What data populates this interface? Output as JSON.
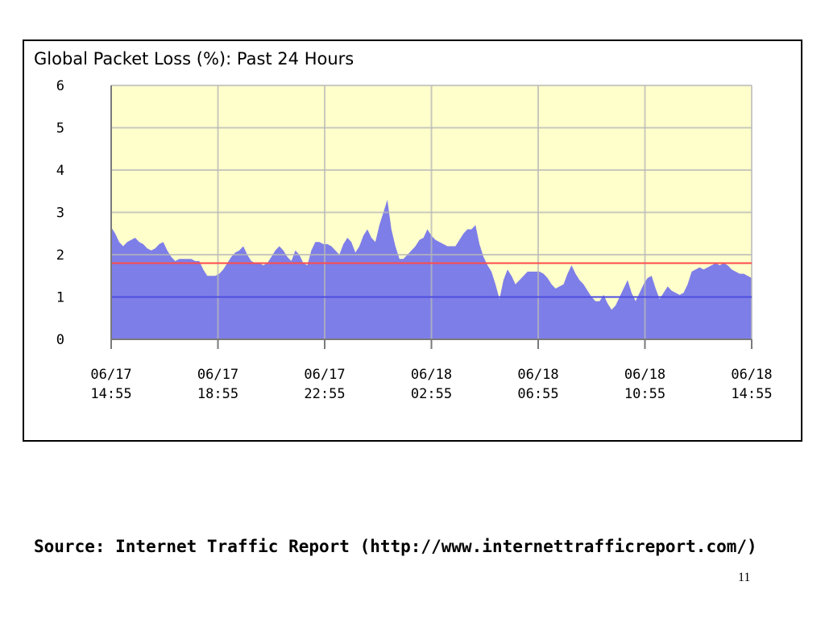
{
  "chart_data": {
    "type": "area",
    "title": "Global Packet Loss (%): Past 24 Hours",
    "ylim": [
      0,
      6
    ],
    "y_ticks": [
      "0",
      "1",
      "2",
      "3",
      "4",
      "5",
      "6"
    ],
    "x_ticks": [
      {
        "date": "06/17",
        "time": "14:55"
      },
      {
        "date": "06/17",
        "time": "18:55"
      },
      {
        "date": "06/17",
        "time": "22:55"
      },
      {
        "date": "06/18",
        "time": "02:55"
      },
      {
        "date": "06/18",
        "time": "06:55"
      },
      {
        "date": "06/18",
        "time": "10:55"
      },
      {
        "date": "06/18",
        "time": "14:55"
      }
    ],
    "x_range_hours": [
      0,
      24
    ],
    "grid": true,
    "series": [
      {
        "values": [
          [
            0.0,
            2.65
          ],
          [
            0.15,
            2.5
          ],
          [
            0.3,
            2.3
          ],
          [
            0.45,
            2.2
          ],
          [
            0.6,
            2.3
          ],
          [
            0.75,
            2.35
          ],
          [
            0.9,
            2.4
          ],
          [
            1.05,
            2.3
          ],
          [
            1.2,
            2.25
          ],
          [
            1.35,
            2.15
          ],
          [
            1.5,
            2.1
          ],
          [
            1.65,
            2.15
          ],
          [
            1.8,
            2.25
          ],
          [
            1.95,
            2.3
          ],
          [
            2.1,
            2.1
          ],
          [
            2.25,
            1.95
          ],
          [
            2.4,
            1.85
          ],
          [
            2.55,
            1.9
          ],
          [
            2.7,
            1.9
          ],
          [
            2.85,
            1.9
          ],
          [
            3.0,
            1.9
          ],
          [
            3.15,
            1.85
          ],
          [
            3.3,
            1.85
          ],
          [
            3.45,
            1.65
          ],
          [
            3.6,
            1.5
          ],
          [
            3.75,
            1.5
          ],
          [
            3.9,
            1.5
          ],
          [
            4.05,
            1.55
          ],
          [
            4.2,
            1.65
          ],
          [
            4.35,
            1.8
          ],
          [
            4.5,
            1.95
          ],
          [
            4.65,
            2.05
          ],
          [
            4.8,
            2.1
          ],
          [
            4.95,
            2.2
          ],
          [
            5.1,
            2.0
          ],
          [
            5.25,
            1.85
          ],
          [
            5.4,
            1.8
          ],
          [
            5.55,
            1.8
          ],
          [
            5.7,
            1.75
          ],
          [
            5.85,
            1.8
          ],
          [
            6.0,
            1.95
          ],
          [
            6.15,
            2.1
          ],
          [
            6.3,
            2.2
          ],
          [
            6.45,
            2.1
          ],
          [
            6.6,
            1.95
          ],
          [
            6.75,
            1.85
          ],
          [
            6.9,
            2.1
          ],
          [
            7.05,
            2.0
          ],
          [
            7.2,
            1.8
          ],
          [
            7.35,
            1.75
          ],
          [
            7.5,
            2.1
          ],
          [
            7.65,
            2.3
          ],
          [
            7.8,
            2.3
          ],
          [
            7.95,
            2.25
          ],
          [
            8.1,
            2.25
          ],
          [
            8.25,
            2.2
          ],
          [
            8.4,
            2.1
          ],
          [
            8.55,
            2.0
          ],
          [
            8.7,
            2.25
          ],
          [
            8.85,
            2.4
          ],
          [
            9.0,
            2.3
          ],
          [
            9.15,
            2.05
          ],
          [
            9.3,
            2.2
          ],
          [
            9.45,
            2.45
          ],
          [
            9.6,
            2.6
          ],
          [
            9.75,
            2.4
          ],
          [
            9.9,
            2.3
          ],
          [
            10.05,
            2.7
          ],
          [
            10.2,
            3.0
          ],
          [
            10.35,
            3.3
          ],
          [
            10.5,
            2.6
          ],
          [
            10.65,
            2.2
          ],
          [
            10.8,
            1.9
          ],
          [
            10.95,
            1.9
          ],
          [
            11.1,
            2.0
          ],
          [
            11.25,
            2.1
          ],
          [
            11.4,
            2.2
          ],
          [
            11.55,
            2.35
          ],
          [
            11.7,
            2.4
          ],
          [
            11.85,
            2.6
          ],
          [
            12.0,
            2.45
          ],
          [
            12.15,
            2.35
          ],
          [
            12.3,
            2.3
          ],
          [
            12.45,
            2.25
          ],
          [
            12.6,
            2.2
          ],
          [
            12.75,
            2.2
          ],
          [
            12.9,
            2.2
          ],
          [
            13.05,
            2.35
          ],
          [
            13.2,
            2.5
          ],
          [
            13.35,
            2.6
          ],
          [
            13.5,
            2.6
          ],
          [
            13.65,
            2.7
          ],
          [
            13.8,
            2.25
          ],
          [
            13.95,
            1.95
          ],
          [
            14.1,
            1.75
          ],
          [
            14.25,
            1.6
          ],
          [
            14.4,
            1.3
          ],
          [
            14.55,
            0.95
          ],
          [
            14.7,
            1.4
          ],
          [
            14.85,
            1.65
          ],
          [
            15.0,
            1.5
          ],
          [
            15.15,
            1.3
          ],
          [
            15.3,
            1.4
          ],
          [
            15.45,
            1.5
          ],
          [
            15.6,
            1.6
          ],
          [
            15.75,
            1.6
          ],
          [
            15.9,
            1.6
          ],
          [
            16.05,
            1.6
          ],
          [
            16.2,
            1.55
          ],
          [
            16.35,
            1.45
          ],
          [
            16.5,
            1.3
          ],
          [
            16.65,
            1.2
          ],
          [
            16.8,
            1.25
          ],
          [
            16.95,
            1.3
          ],
          [
            17.1,
            1.55
          ],
          [
            17.25,
            1.75
          ],
          [
            17.4,
            1.55
          ],
          [
            17.55,
            1.4
          ],
          [
            17.7,
            1.3
          ],
          [
            17.85,
            1.15
          ],
          [
            18.0,
            1.0
          ],
          [
            18.15,
            0.9
          ],
          [
            18.3,
            0.9
          ],
          [
            18.45,
            1.05
          ],
          [
            18.6,
            0.85
          ],
          [
            18.75,
            0.7
          ],
          [
            18.9,
            0.8
          ],
          [
            19.05,
            1.0
          ],
          [
            19.2,
            1.2
          ],
          [
            19.35,
            1.4
          ],
          [
            19.5,
            1.1
          ],
          [
            19.65,
            0.9
          ],
          [
            19.8,
            1.1
          ],
          [
            19.95,
            1.3
          ],
          [
            20.1,
            1.45
          ],
          [
            20.25,
            1.5
          ],
          [
            20.4,
            1.2
          ],
          [
            20.55,
            0.95
          ],
          [
            20.7,
            1.1
          ],
          [
            20.85,
            1.25
          ],
          [
            21.0,
            1.15
          ],
          [
            21.15,
            1.1
          ],
          [
            21.3,
            1.05
          ],
          [
            21.45,
            1.1
          ],
          [
            21.6,
            1.3
          ],
          [
            21.75,
            1.6
          ],
          [
            21.9,
            1.65
          ],
          [
            22.05,
            1.7
          ],
          [
            22.2,
            1.65
          ],
          [
            22.35,
            1.7
          ],
          [
            22.5,
            1.75
          ],
          [
            22.65,
            1.8
          ],
          [
            22.8,
            1.75
          ],
          [
            22.95,
            1.8
          ],
          [
            23.1,
            1.75
          ],
          [
            23.25,
            1.65
          ],
          [
            23.4,
            1.6
          ],
          [
            23.55,
            1.55
          ],
          [
            23.7,
            1.55
          ],
          [
            23.85,
            1.5
          ],
          [
            24.0,
            1.45
          ]
        ]
      }
    ],
    "reference_lines": [
      {
        "y": 1.8,
        "color": "#ff4a4a"
      },
      {
        "y": 1.0,
        "color": "#4d4de0"
      }
    ],
    "colors": {
      "plot_background": "#ffffcc",
      "area_fill": "#7e7ee8",
      "grid": "#b8b8b8",
      "axis": "#7a7a7a"
    }
  },
  "footer": {
    "source": "Source: Internet Traffic Report (http://www.internettrafficreport.com/)",
    "page_number": "11"
  }
}
